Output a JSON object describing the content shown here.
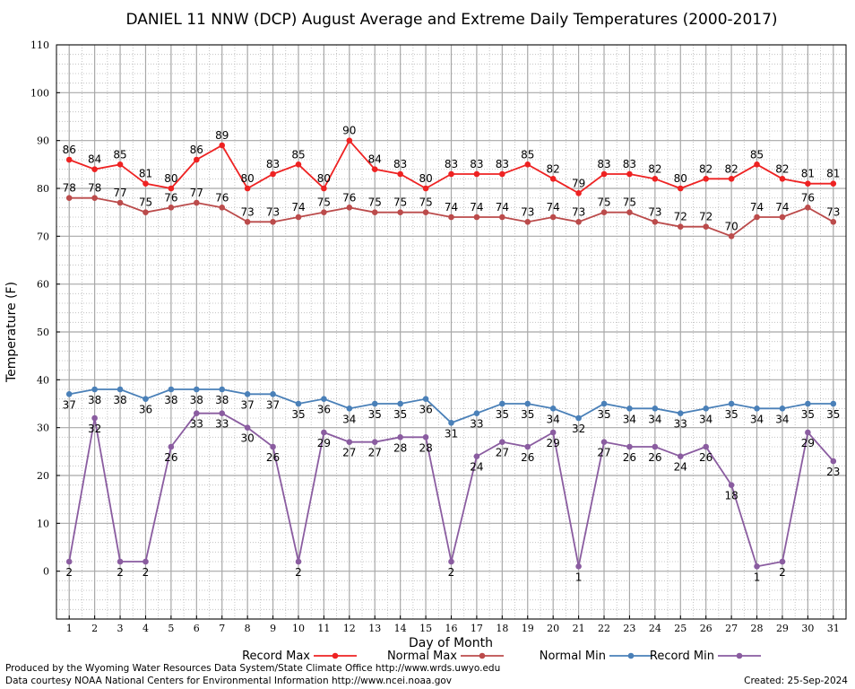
{
  "chart_data": {
    "type": "line",
    "title": "DANIEL 11 NNW (DCP) August Average and Extreme Daily Temperatures (2000-2017)",
    "xlabel": "Day of Month",
    "ylabel": "Temperature (F)",
    "ylim": [
      -10,
      110
    ],
    "yticks": [
      0,
      10,
      20,
      30,
      40,
      50,
      60,
      70,
      80,
      90,
      100,
      110
    ],
    "xlim": [
      0.5,
      31.5
    ],
    "x": [
      1,
      2,
      3,
      4,
      5,
      6,
      7,
      8,
      9,
      10,
      11,
      12,
      13,
      14,
      15,
      16,
      17,
      18,
      19,
      20,
      21,
      22,
      23,
      24,
      25,
      26,
      27,
      28,
      29,
      30,
      31
    ],
    "grid": true,
    "legend_placement": "bottom",
    "series": [
      {
        "name": "Record Max",
        "color": "#ee2222",
        "values": [
          86,
          84,
          85,
          81,
          80,
          86,
          89,
          80,
          83,
          85,
          80,
          90,
          84,
          83,
          80,
          83,
          83,
          83,
          85,
          82,
          79,
          83,
          83,
          82,
          80,
          82,
          82,
          85,
          82,
          81,
          81
        ]
      },
      {
        "name": "Normal Max",
        "color": "#bb4b4b",
        "values": [
          78,
          78,
          77,
          75,
          76,
          77,
          76,
          73,
          73,
          74,
          75,
          76,
          75,
          75,
          75,
          74,
          74,
          74,
          73,
          74,
          73,
          75,
          75,
          73,
          72,
          72,
          70,
          74,
          74,
          76,
          73
        ]
      },
      {
        "name": "Normal Min",
        "color": "#4a80b8",
        "values": [
          37,
          38,
          38,
          36,
          38,
          38,
          38,
          37,
          37,
          35,
          36,
          34,
          35,
          35,
          36,
          31,
          33,
          35,
          35,
          34,
          32,
          35,
          34,
          34,
          33,
          34,
          35,
          34,
          34,
          35,
          35
        ]
      },
      {
        "name": "Record Min",
        "color": "#8a5ca0",
        "values": [
          2,
          32,
          2,
          2,
          26,
          33,
          33,
          30,
          26,
          2,
          29,
          27,
          27,
          28,
          28,
          2,
          24,
          27,
          26,
          29,
          1,
          27,
          26,
          26,
          24,
          26,
          18,
          1,
          2,
          29,
          23
        ]
      }
    ]
  },
  "footer": {
    "produced_by": "Produced by the Wyoming Water Resources Data System/State Climate Office http://www.wrds.uwyo.edu",
    "courtesy": "Data courtesy NOAA National Centers for Environmental Information http://www.ncei.noaa.gov",
    "created": "Created:  25-Sep-2024"
  }
}
